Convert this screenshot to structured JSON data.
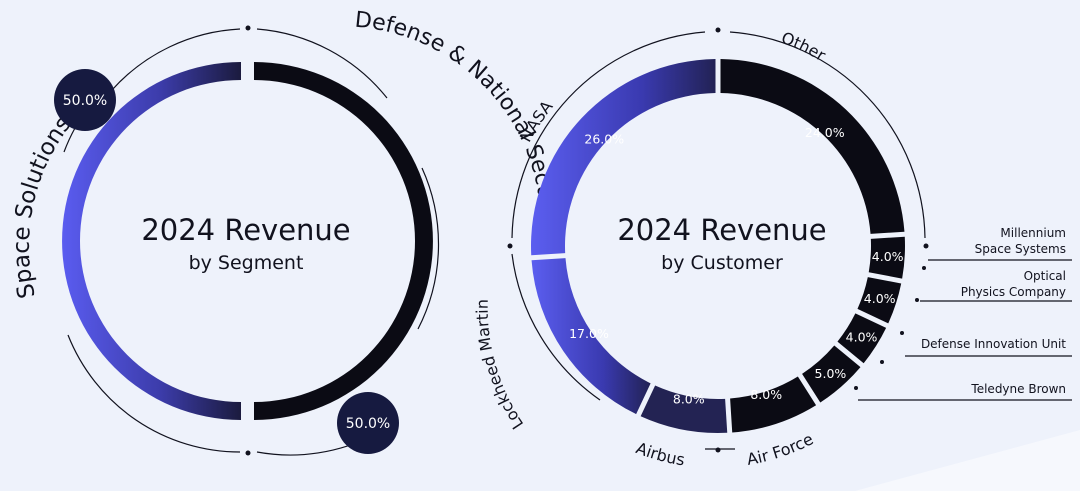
{
  "chart_data": [
    {
      "type": "pie",
      "title": "2024 Revenue",
      "subtitle": "by Segment",
      "slices": [
        {
          "label": "Defense & National Security",
          "value": 50.0,
          "display": "50.0%",
          "color": "#0b0b14"
        },
        {
          "label": "Space Solutions",
          "value": 50.0,
          "display": "50.0%",
          "color": "#4a4ad6"
        }
      ]
    },
    {
      "type": "pie",
      "title": "2024 Revenue",
      "subtitle": "by Customer",
      "slices": [
        {
          "label": "Other",
          "value": 24.0,
          "display": "24.0%",
          "color": "#0b0b14"
        },
        {
          "label": "Millennium Space Systems",
          "value": 4.0,
          "display": "4.0%",
          "color": "#0b0b14"
        },
        {
          "label": "Optical Physics Company",
          "value": 4.0,
          "display": "4.0%",
          "color": "#0b0b14"
        },
        {
          "label": "Defense Innovation Unit",
          "value": 4.0,
          "display": "4.0%",
          "color": "#0b0b14"
        },
        {
          "label": "Teledyne Brown",
          "value": 5.0,
          "display": "5.0%",
          "color": "#0b0b14"
        },
        {
          "label": "Air Force",
          "value": 8.0,
          "display": "8.0%",
          "color": "#0b0b14"
        },
        {
          "label": "Airbus",
          "value": 8.0,
          "display": "8.0%",
          "color": "#232353"
        },
        {
          "label": "Lockheed Martin",
          "value": 17.0,
          "display": "17.0%",
          "color": "#4a4ad6"
        },
        {
          "label": "NASA",
          "value": 26.0,
          "display": "26.0%",
          "color": "#4a4ad6"
        }
      ]
    }
  ],
  "labels": {
    "segment": {
      "left": "Space Solutions",
      "right": "Defense & National Security",
      "left_value": "50.0%",
      "right_value": "50.0%"
    },
    "customer": {
      "millennium_line1": "Millennium",
      "millennium_line2": "Space Systems",
      "optical_line1": "Optical",
      "optical_line2": "Physics Company",
      "diu": "Defense Innovation Unit",
      "teledyne": "Teledyne Brown"
    }
  },
  "colors": {
    "dark": "#0b0b14",
    "blue": "#4a4ad6",
    "navy": "#232353",
    "badge": "#161a40",
    "background": "#eef2fb"
  }
}
